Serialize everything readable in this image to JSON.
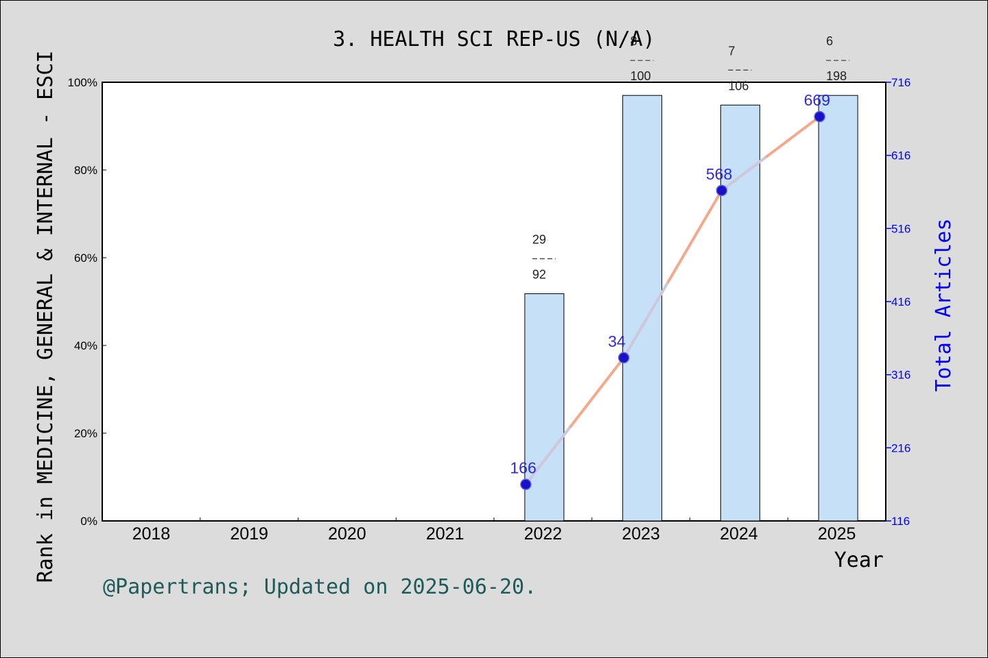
{
  "chart_data": {
    "type": "bar",
    "title": "3. HEALTH SCI REP-US (N/A)",
    "xlabel": "Year",
    "ylabel_left": "Rank in MEDICINE, GENERAL & INTERNAL - ESCI",
    "ylabel_right": "Total Articles",
    "categories": [
      "2018",
      "2019",
      "2020",
      "2021",
      "2022",
      "2023",
      "2024",
      "2025"
    ],
    "left_axis": {
      "ylim": [
        0,
        100
      ],
      "ticks": [
        "0%",
        "20%",
        "40%",
        "60%",
        "80%",
        "100%"
      ]
    },
    "right_axis": {
      "ylim": [
        116,
        716
      ],
      "ticks": [
        "116",
        "216",
        "316",
        "416",
        "516",
        "616",
        "716"
      ]
    },
    "bars": [
      {
        "year": "2022",
        "value_pct": 51.8,
        "rank": "29",
        "total": "92"
      },
      {
        "year": "2023",
        "value_pct": 97.0,
        "rank": "8",
        "total": "100"
      },
      {
        "year": "2024",
        "value_pct": 94.8,
        "rank": "7",
        "total": "106"
      },
      {
        "year": "2025",
        "value_pct": 97.0,
        "rank": "6",
        "total": "198"
      }
    ],
    "line": {
      "points": [
        {
          "year": "2022",
          "value": 166,
          "label": "166"
        },
        {
          "year": "2023",
          "value": 34,
          "label": "34",
          "y_pct": 37.2
        },
        {
          "year": "2024",
          "value": 568,
          "label": "568"
        },
        {
          "year": "2025",
          "value": 669,
          "label": "669"
        }
      ]
    },
    "grid": false,
    "colors": {
      "bar_fill": "#c6e0f7",
      "line": "#f4a384",
      "marker": "#1a10c8",
      "right_axis": "#0000ff",
      "footer": "#1c5b58"
    }
  },
  "footer": "@Papertrans; Updated on 2025-06-20."
}
